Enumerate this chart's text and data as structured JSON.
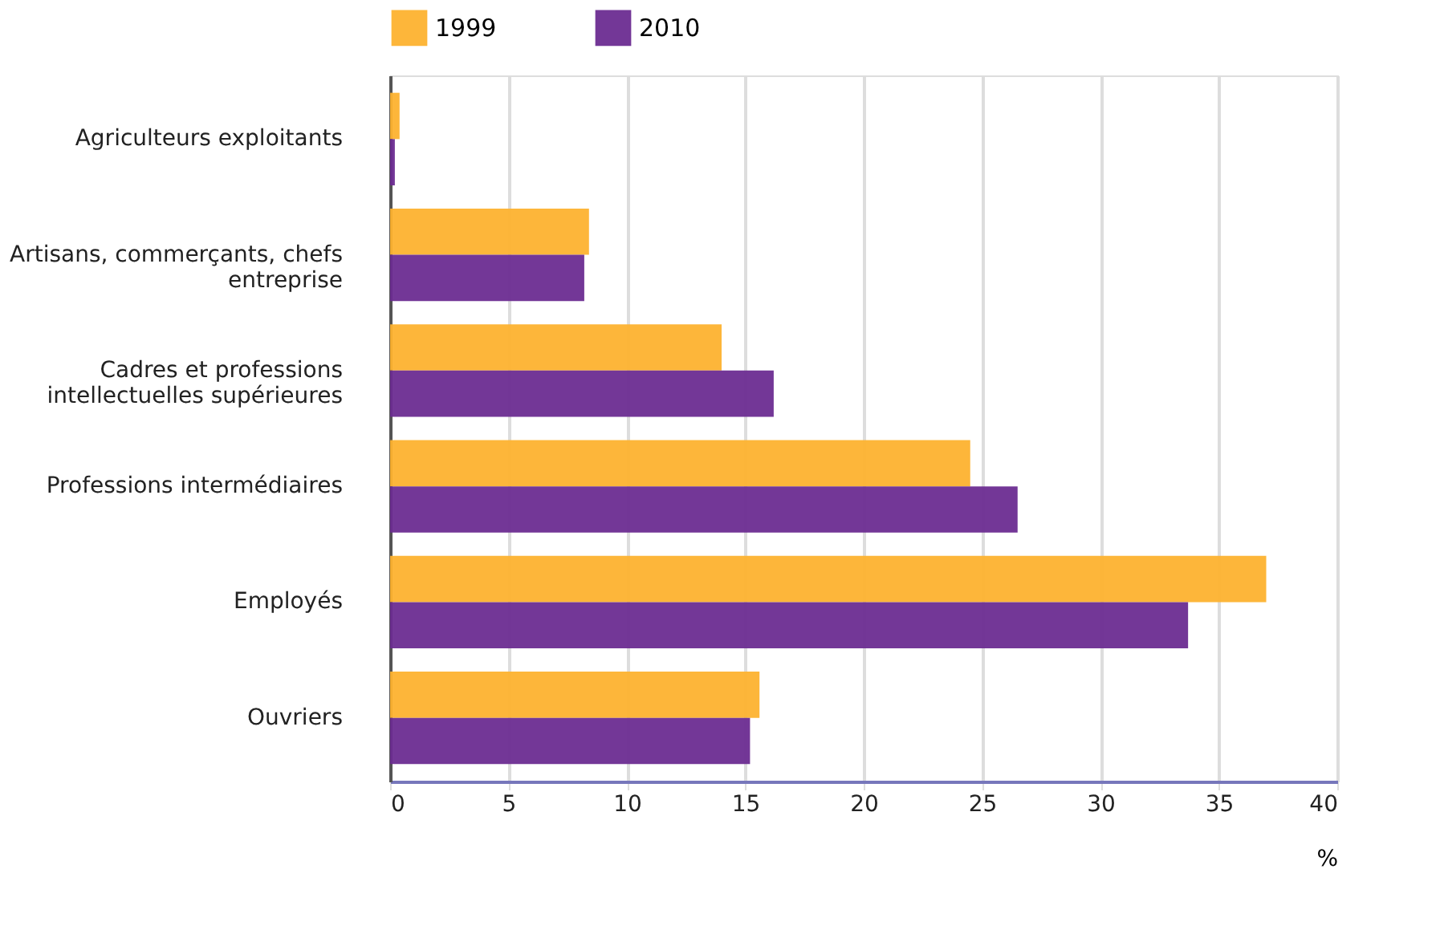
{
  "chart_data": {
    "type": "bar",
    "orientation": "horizontal",
    "categories": [
      "Agriculteurs exploitants",
      "Artisans, commerçants, chefs entreprise",
      "Cadres et professions intellectuelles supérieures",
      "Professions intermédiaires",
      "Employés",
      "Ouvriers"
    ],
    "series": [
      {
        "name": "1999",
        "color": "#fdb22f",
        "values": [
          0.4,
          8.4,
          14.0,
          24.5,
          37.0,
          15.6
        ]
      },
      {
        "name": "2010",
        "color": "#6b2c91",
        "values": [
          0.2,
          8.2,
          16.2,
          26.5,
          33.7,
          15.2
        ]
      }
    ],
    "xlabel": "%",
    "xlim": [
      0,
      40
    ],
    "xticks": [
      0,
      5,
      10,
      15,
      20,
      25,
      30,
      35,
      40
    ],
    "grid": "x",
    "legend": "top"
  }
}
